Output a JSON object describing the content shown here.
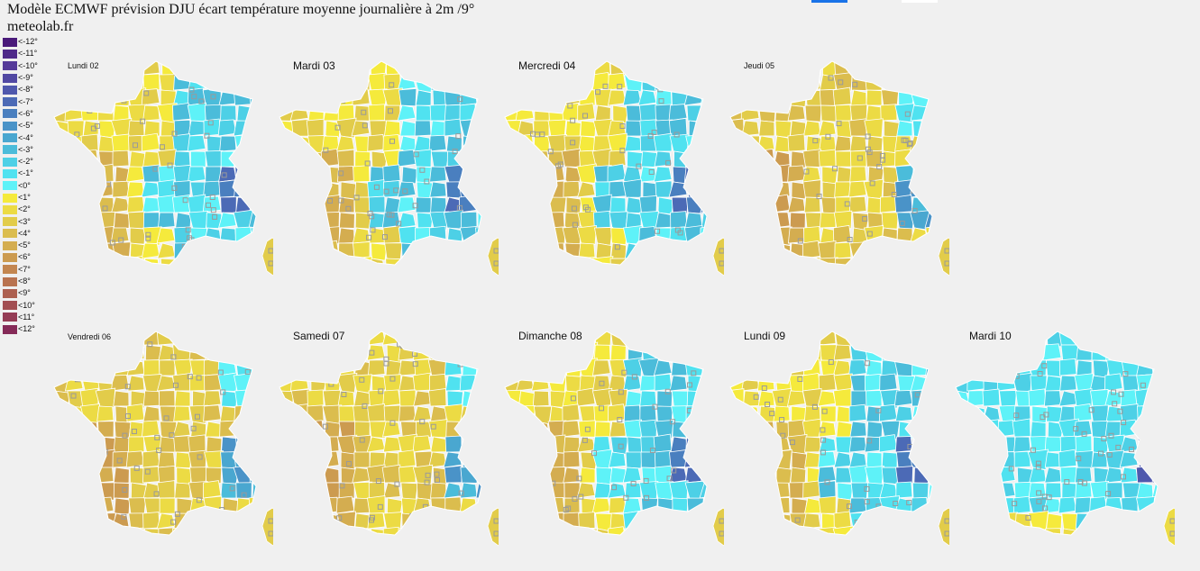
{
  "title": "Modèle ECMWF prévision DJU écart température moyenne journalière à 2m /9°",
  "site": "meteolab.fr",
  "colors": {
    "background": "#f0f0f0",
    "topbar_blue": "#1a73e8",
    "topbar_white": "#ffffff",
    "department_border": "#ffffff",
    "station_marker": "#9a9a9a"
  },
  "legend": [
    {
      "label": "<-12°",
      "color": "#4a1a7a"
    },
    {
      "label": "<-11°",
      "color": "#4f2a8a"
    },
    {
      "label": "<-10°",
      "color": "#553a99"
    },
    {
      "label": "<-9°",
      "color": "#5148a3"
    },
    {
      "label": "<-8°",
      "color": "#4f58ad"
    },
    {
      "label": "<-7°",
      "color": "#4c6ab6"
    },
    {
      "label": "<-6°",
      "color": "#4a7fbf"
    },
    {
      "label": "<-5°",
      "color": "#4a93c8"
    },
    {
      "label": "<-4°",
      "color": "#4aa7d0"
    },
    {
      "label": "<-3°",
      "color": "#4bbcda"
    },
    {
      "label": "<-2°",
      "color": "#4dd0e6"
    },
    {
      "label": "<-1°",
      "color": "#50e2f0"
    },
    {
      "label": "<0°",
      "color": "#5ef2f8"
    },
    {
      "label": "<1°",
      "color": "#f5ea3c"
    },
    {
      "label": "<2°",
      "color": "#ecdb44"
    },
    {
      "label": "<3°",
      "color": "#e2cc4a"
    },
    {
      "label": "<4°",
      "color": "#dbbd4e"
    },
    {
      "label": "<5°",
      "color": "#d4ad50"
    },
    {
      "label": "<6°",
      "color": "#cc9b50"
    },
    {
      "label": "<7°",
      "color": "#c38650"
    },
    {
      "label": "<8°",
      "color": "#b97350"
    },
    {
      "label": "<9°",
      "color": "#ad6050"
    },
    {
      "label": "<10°",
      "color": "#a24e52"
    },
    {
      "label": "<11°",
      "color": "#943c55"
    },
    {
      "label": "<12°",
      "color": "#852a58"
    }
  ],
  "days": [
    {
      "label": "Lundi 02",
      "dominant": "mixed-west-warm-east-cold",
      "corsica": true
    },
    {
      "label": "Mardi 03",
      "dominant": "mixed-west-warm-east-cold",
      "corsica": true
    },
    {
      "label": "Mercredi 04",
      "dominant": "mixed-west-warm-east-cold",
      "corsica": true
    },
    {
      "label": "Jeudi 05",
      "dominant": "mostly-warm",
      "corsica": true
    },
    {
      "label": "Vendredi 06",
      "dominant": "mostly-warm",
      "corsica": true
    },
    {
      "label": "Samedi 07",
      "dominant": "mostly-warm",
      "corsica": true
    },
    {
      "label": "Dimanche 08",
      "dominant": "mixed-west-warm-east-cold",
      "corsica": true
    },
    {
      "label": "Lundi 09",
      "dominant": "mixed-west-warm-east-cold",
      "corsica": true
    },
    {
      "label": "Mardi 10",
      "dominant": "mostly-cold",
      "corsica": true
    }
  ]
}
